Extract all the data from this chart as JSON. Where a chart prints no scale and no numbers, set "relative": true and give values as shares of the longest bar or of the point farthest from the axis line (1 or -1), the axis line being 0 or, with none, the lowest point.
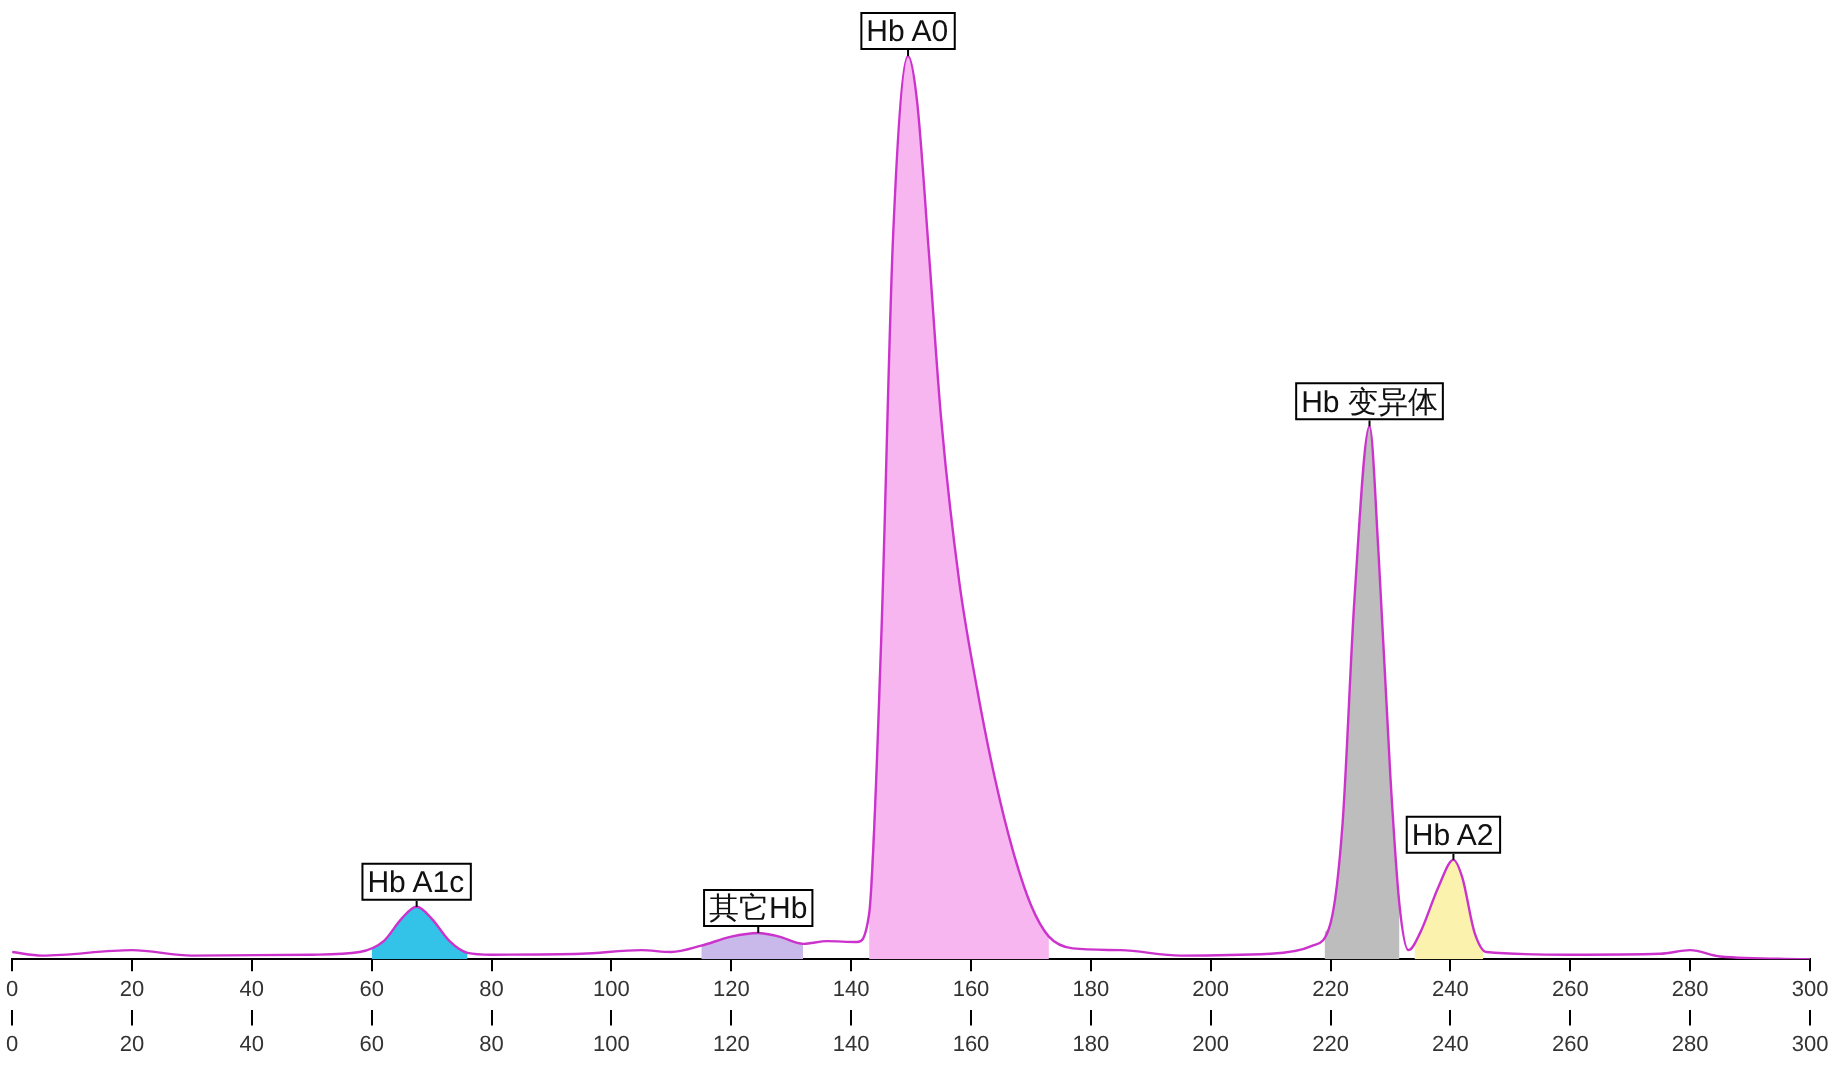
{
  "chart_data": {
    "type": "line",
    "relative": true,
    "xlim": [
      0,
      300
    ],
    "xticks": [
      0,
      20,
      40,
      60,
      80,
      100,
      120,
      140,
      160,
      180,
      200,
      220,
      240,
      260,
      280,
      300
    ],
    "x2lim": [
      0,
      300
    ],
    "x2ticks": [
      0,
      20,
      40,
      60,
      80,
      100,
      120,
      140,
      160,
      180,
      200,
      220,
      240,
      260,
      280,
      300
    ],
    "grid": false,
    "legend": false,
    "series": [
      {
        "color": "#cc33cc",
        "x": [
          0,
          5,
          20,
          30,
          50,
          58,
          62,
          65,
          67.5,
          70,
          73,
          76,
          80,
          95,
          105,
          110,
          115,
          120,
          124.5,
          128,
          132,
          136,
          141,
          143,
          145,
          147,
          149.5,
          151,
          153,
          155,
          158,
          161,
          164,
          167,
          170,
          173,
          177,
          185,
          195,
          210,
          217,
          220,
          222,
          224,
          226.5,
          228,
          230,
          231.5,
          233,
          235,
          238,
          240.5,
          242,
          244,
          246,
          260,
          275,
          280,
          285,
          300
        ],
        "values": [
          0.008,
          0.004,
          0.01,
          0.004,
          0.005,
          0.008,
          0.02,
          0.045,
          0.058,
          0.045,
          0.02,
          0.007,
          0.005,
          0.006,
          0.01,
          0.008,
          0.015,
          0.025,
          0.029,
          0.025,
          0.017,
          0.02,
          0.019,
          0.05,
          0.35,
          0.8,
          1.0,
          0.95,
          0.78,
          0.6,
          0.42,
          0.3,
          0.2,
          0.12,
          0.06,
          0.025,
          0.012,
          0.01,
          0.004,
          0.006,
          0.015,
          0.04,
          0.15,
          0.4,
          0.59,
          0.45,
          0.2,
          0.06,
          0.01,
          0.03,
          0.08,
          0.11,
          0.09,
          0.03,
          0.008,
          0.005,
          0.006,
          0.01,
          0.003,
          0
        ]
      },
      {
        "type": "area",
        "name": "Hb A1c",
        "color": "#33c3e8",
        "x": [
          60,
          62,
          65,
          67.5,
          70,
          73,
          76
        ],
        "values": [
          0.012,
          0.02,
          0.045,
          0.058,
          0.045,
          0.02,
          0.007
        ]
      },
      {
        "type": "area",
        "name": "其它Hb",
        "color": "#c9b9ea",
        "x": [
          115,
          120,
          124.5,
          128,
          132
        ],
        "values": [
          0.015,
          0.025,
          0.029,
          0.025,
          0.017
        ]
      },
      {
        "type": "area",
        "name": "Hb A0",
        "color": "#f7b6f0",
        "x": [
          143,
          145,
          147,
          149.5,
          151,
          153,
          155,
          158,
          161,
          164,
          167,
          170,
          173
        ],
        "values": [
          0.05,
          0.35,
          0.8,
          1.0,
          0.95,
          0.78,
          0.6,
          0.42,
          0.3,
          0.2,
          0.12,
          0.06,
          0.025
        ]
      },
      {
        "type": "area",
        "name": "Hb 变异体",
        "color": "#bdbdbd",
        "x": [
          219,
          220,
          222,
          224,
          226.5,
          228,
          230,
          231.5
        ],
        "values": [
          0.03,
          0.04,
          0.15,
          0.4,
          0.59,
          0.45,
          0.2,
          0.06
        ]
      },
      {
        "type": "area",
        "name": "Hb A2",
        "color": "#fbf3ad",
        "x": [
          234,
          235,
          238,
          240.5,
          242,
          244,
          245.5
        ],
        "values": [
          0.02,
          0.03,
          0.08,
          0.11,
          0.09,
          0.03,
          0.01
        ]
      }
    ]
  }
}
